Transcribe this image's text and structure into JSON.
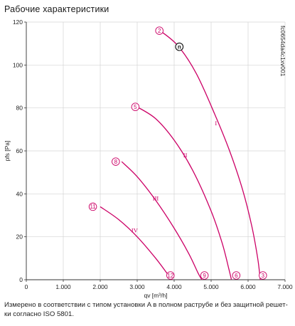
{
  "page": {
    "title": "Рабочие характеристики",
    "note": "Измерено в соответствии с типом установки A в полном раструбе и без защитной решет-ки согласно ISO 5801.",
    "figure_code": "fc0654da4c1xv001"
  },
  "chart_data": {
    "type": "line",
    "title": "Рабочие характеристики",
    "xlabel": "qv [m³/h]",
    "ylabel": "pfs [Pa]",
    "xlim": [
      0,
      7000
    ],
    "ylim": [
      0,
      120
    ],
    "x_ticks": [
      0,
      1000,
      2000,
      3000,
      4000,
      5000,
      6000,
      7000
    ],
    "x_tick_labels": [
      "0",
      "1.000",
      "2.000",
      "3.000",
      "4.000",
      "5.000",
      "6.000",
      "7.000"
    ],
    "y_ticks": [
      0,
      20,
      40,
      60,
      80,
      100,
      120
    ],
    "y_tick_labels": [
      "0",
      "20",
      "40",
      "60",
      "80",
      "100",
      "120"
    ],
    "grid": true,
    "line_color": "#cc0066",
    "series": [
      {
        "name": "I",
        "label_at": [
          5130,
          72
        ],
        "points": [
          [
            3620,
            116
          ],
          [
            4100,
            109
          ],
          [
            4600,
            96
          ],
          [
            5100,
            77
          ],
          [
            5500,
            60
          ],
          [
            5850,
            42
          ],
          [
            6100,
            25
          ],
          [
            6260,
            10
          ],
          [
            6330,
            0
          ]
        ]
      },
      {
        "name": "II",
        "label_at": [
          4300,
          57
        ],
        "points": [
          [
            3000,
            80.5
          ],
          [
            3500,
            75
          ],
          [
            4000,
            65
          ],
          [
            4500,
            51
          ],
          [
            5000,
            32
          ],
          [
            5300,
            17
          ],
          [
            5480,
            5
          ],
          [
            5550,
            0
          ]
        ]
      },
      {
        "name": "III",
        "label_at": [
          3500,
          37
        ],
        "points": [
          [
            2580,
            55
          ],
          [
            3000,
            48
          ],
          [
            3500,
            37
          ],
          [
            4000,
            24
          ],
          [
            4400,
            12
          ],
          [
            4650,
            3
          ],
          [
            4750,
            0
          ]
        ]
      },
      {
        "name": "IV",
        "label_at": [
          2930,
          22
        ],
        "points": [
          [
            2000,
            34
          ],
          [
            2500,
            28
          ],
          [
            3000,
            20
          ],
          [
            3500,
            10
          ],
          [
            3850,
            2
          ],
          [
            3950,
            0
          ]
        ]
      }
    ],
    "markers": [
      {
        "id": "2",
        "x": 3600,
        "y": 116
      },
      {
        "id": "5",
        "x": 2950,
        "y": 80.5
      },
      {
        "id": "8",
        "x": 2420,
        "y": 55
      },
      {
        "id": "11",
        "x": 1800,
        "y": 34
      },
      {
        "id": "3",
        "x": 6400,
        "y": 2
      },
      {
        "id": "6",
        "x": 5680,
        "y": 2
      },
      {
        "id": "9",
        "x": 4820,
        "y": 2
      },
      {
        "id": "12",
        "x": 3900,
        "y": 2
      }
    ],
    "operating_point": {
      "id": "n",
      "x": 4140,
      "y": 108.5
    }
  }
}
